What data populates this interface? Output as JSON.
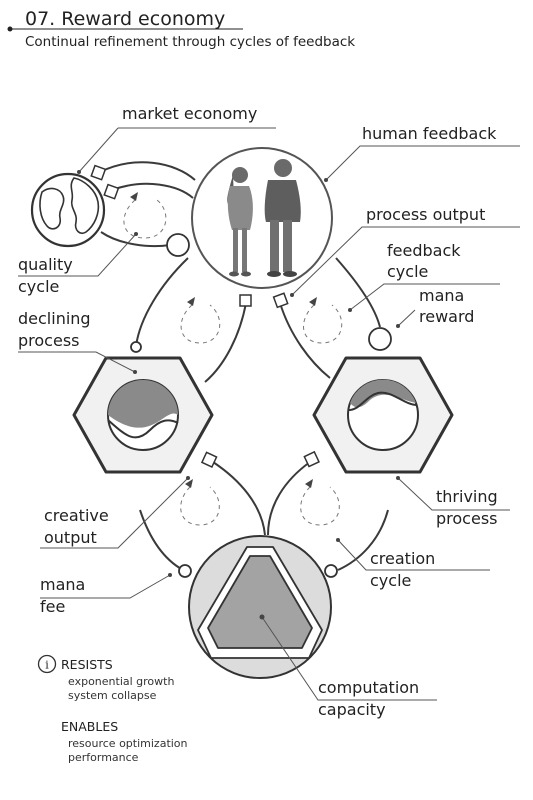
{
  "header": {
    "title": "07. Reward economy",
    "subtitle": "Continual refinement through cycles of feedback"
  },
  "labels": {
    "market_economy": "market economy",
    "human_feedback": "human feedback",
    "process_output": "process output",
    "feedback_cycle_1": "feedback",
    "feedback_cycle_2": "cycle",
    "mana_reward_1": "mana",
    "mana_reward_2": "reward",
    "quality_cycle_1": "quality",
    "quality_cycle_2": "cycle",
    "declining_process_1": "declining",
    "declining_process_2": "process",
    "creative_output_1": "creative",
    "creative_output_2": "output",
    "thriving_process_1": "thriving",
    "thriving_process_2": "process",
    "creation_cycle_1": "creation",
    "creation_cycle_2": "cycle",
    "mana_fee_1": "mana",
    "mana_fee_2": "fee",
    "computation_capacity_1": "computation",
    "computation_capacity_2": "capacity"
  },
  "notes": {
    "info_icon": "i",
    "resists_heading": "RESISTS",
    "resists_items": [
      "exponential growth",
      "system collapse"
    ],
    "enables_heading": "ENABLES",
    "enables_items": [
      "resource optimization",
      "performance"
    ]
  },
  "colors": {
    "ink": "#222222",
    "hex_fill": "#f1f1f1",
    "level_fill": "#8a8a8a",
    "triangle_fill": "#a3a3a3",
    "circle_fill": "#dcdcdc"
  },
  "icons": [
    "globe-icon",
    "people-icon",
    "info-icon"
  ]
}
